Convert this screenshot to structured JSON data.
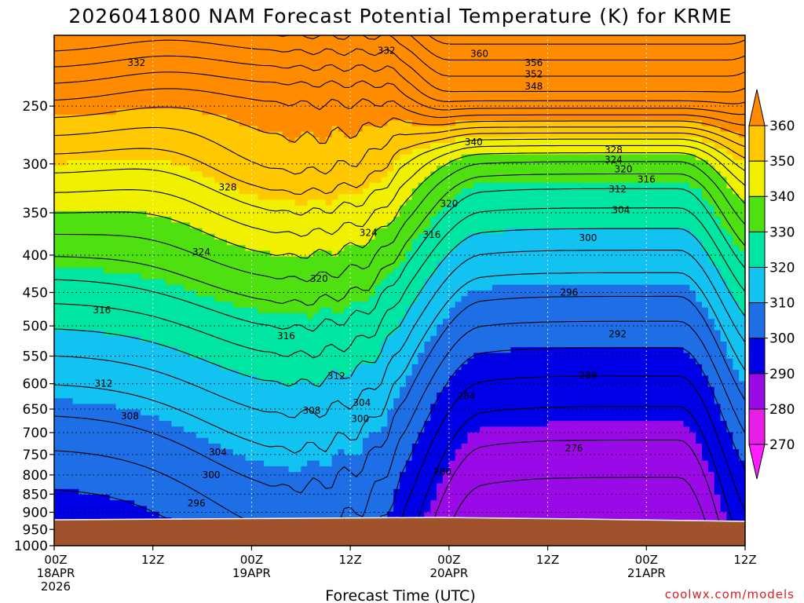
{
  "chart_data": {
    "type": "contour",
    "title": "2026041800 NAM Forecast Potential Temperature (K) for KRME",
    "xlabel": "Forecast Time (UTC)",
    "ylabel": "",
    "credit": "coolwx.com/models",
    "x_range_hours": [
      0,
      84
    ],
    "x_ticks": [
      {
        "hour": 0,
        "lines": [
          "00Z",
          "18APR",
          "2026"
        ]
      },
      {
        "hour": 12,
        "lines": [
          "12Z"
        ]
      },
      {
        "hour": 24,
        "lines": [
          "00Z",
          "19APR"
        ]
      },
      {
        "hour": 36,
        "lines": [
          "12Z"
        ]
      },
      {
        "hour": 48,
        "lines": [
          "00Z",
          "20APR"
        ]
      },
      {
        "hour": 60,
        "lines": [
          "12Z"
        ]
      },
      {
        "hour": 72,
        "lines": [
          "00Z",
          "21APR"
        ]
      },
      {
        "hour": 84,
        "lines": [
          "12Z"
        ]
      }
    ],
    "y_axis": {
      "scale": "log",
      "range_hPa": [
        1000,
        200
      ],
      "ticks": [
        250,
        300,
        350,
        400,
        450,
        500,
        550,
        600,
        650,
        700,
        750,
        800,
        850,
        900,
        950,
        1000
      ]
    },
    "colorbar": {
      "levels": [
        270,
        280,
        290,
        300,
        310,
        320,
        330,
        340,
        350,
        360
      ],
      "colors": [
        "#e61ee6",
        "#9a0ae6",
        "#0000e6",
        "#1e6ee6",
        "#12c2f0",
        "#00e6a0",
        "#4ee010",
        "#f0f000",
        "#ffc800",
        "#ff8c00"
      ],
      "below_color": "#ff1eff",
      "above_color": "#ff8c00"
    },
    "contour_interval_K": 4,
    "contour_labels": [
      {
        "hour": 40.4,
        "hPa": 210,
        "value": "332"
      },
      {
        "hour": 10,
        "hPa": 218,
        "value": "332"
      },
      {
        "hour": 51.7,
        "hPa": 212,
        "value": "360"
      },
      {
        "hour": 58.3,
        "hPa": 218,
        "value": "356"
      },
      {
        "hour": 58.3,
        "hPa": 226,
        "value": "352"
      },
      {
        "hour": 58.3,
        "hPa": 235,
        "value": "348"
      },
      {
        "hour": 51,
        "hPa": 280,
        "value": "340"
      },
      {
        "hour": 68,
        "hPa": 287,
        "value": "328"
      },
      {
        "hour": 68,
        "hPa": 296,
        "value": "324"
      },
      {
        "hour": 69.2,
        "hPa": 305,
        "value": "320"
      },
      {
        "hour": 72,
        "hPa": 315,
        "value": "316"
      },
      {
        "hour": 68.5,
        "hPa": 325,
        "value": "312"
      },
      {
        "hour": 68.9,
        "hPa": 347,
        "value": "304"
      },
      {
        "hour": 21.1,
        "hPa": 323,
        "value": "328"
      },
      {
        "hour": 48,
        "hPa": 340,
        "value": "320"
      },
      {
        "hour": 38.2,
        "hPa": 373,
        "value": "324"
      },
      {
        "hour": 45.9,
        "hPa": 375,
        "value": "316"
      },
      {
        "hour": 64.9,
        "hPa": 379,
        "value": "300"
      },
      {
        "hour": 17.9,
        "hPa": 396,
        "value": "324"
      },
      {
        "hour": 32.2,
        "hPa": 431,
        "value": "320"
      },
      {
        "hour": 62.6,
        "hPa": 450,
        "value": "296"
      },
      {
        "hour": 5.8,
        "hPa": 476,
        "value": "316"
      },
      {
        "hour": 28.2,
        "hPa": 516,
        "value": "316"
      },
      {
        "hour": 68.5,
        "hPa": 513,
        "value": "292"
      },
      {
        "hour": 34.3,
        "hPa": 586,
        "value": "312"
      },
      {
        "hour": 64.9,
        "hPa": 584,
        "value": "288"
      },
      {
        "hour": 6,
        "hPa": 600,
        "value": "312"
      },
      {
        "hour": 50.1,
        "hPa": 624,
        "value": "284"
      },
      {
        "hour": 37.4,
        "hPa": 637,
        "value": "304"
      },
      {
        "hour": 31.3,
        "hPa": 653,
        "value": "308"
      },
      {
        "hour": 9.2,
        "hPa": 665,
        "value": "308"
      },
      {
        "hour": 37.2,
        "hPa": 670,
        "value": "300"
      },
      {
        "hour": 63.2,
        "hPa": 736,
        "value": "276"
      },
      {
        "hour": 19.9,
        "hPa": 745,
        "value": "304"
      },
      {
        "hour": 47.2,
        "hPa": 792,
        "value": "280"
      },
      {
        "hour": 19.1,
        "hPa": 800,
        "value": "300"
      },
      {
        "hour": 17.3,
        "hPa": 875,
        "value": "296"
      }
    ]
  }
}
